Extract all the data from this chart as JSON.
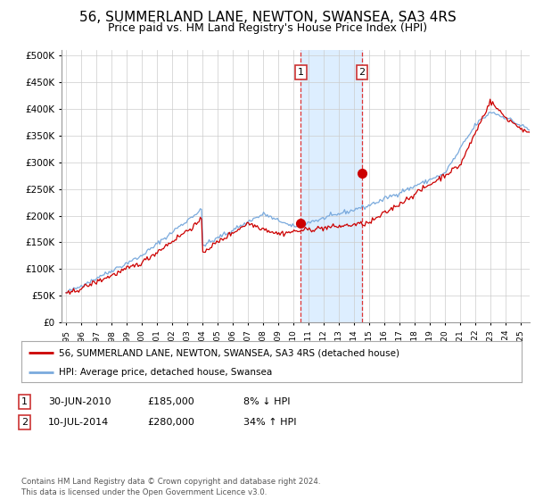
{
  "title": "56, SUMMERLAND LANE, NEWTON, SWANSEA, SA3 4RS",
  "subtitle": "Price paid vs. HM Land Registry's House Price Index (HPI)",
  "title_fontsize": 11,
  "subtitle_fontsize": 9,
  "background_color": "#ffffff",
  "plot_bg_color": "#ffffff",
  "grid_color": "#cccccc",
  "hpi_color": "#7aaadd",
  "price_color": "#cc0000",
  "highlight_bg": "#ddeeff",
  "sale1_year": 2010.5,
  "sale2_year": 2014.54,
  "sale1_price": 185000,
  "sale2_price": 280000,
  "legend_line1": "56, SUMMERLAND LANE, NEWTON, SWANSEA, SA3 4RS (detached house)",
  "legend_line2": "HPI: Average price, detached house, Swansea",
  "table_row1": [
    "1",
    "30-JUN-2010",
    "£185,000",
    "8% ↓ HPI"
  ],
  "table_row2": [
    "2",
    "10-JUL-2014",
    "£280,000",
    "34% ↑ HPI"
  ],
  "footer": "Contains HM Land Registry data © Crown copyright and database right 2024.\nThis data is licensed under the Open Government Licence v3.0.",
  "ylim": [
    0,
    510000
  ],
  "xlim_left": 1994.7,
  "xlim_right": 2025.6,
  "yticks": [
    0,
    50000,
    100000,
    150000,
    200000,
    250000,
    300000,
    350000,
    400000,
    450000,
    500000
  ]
}
